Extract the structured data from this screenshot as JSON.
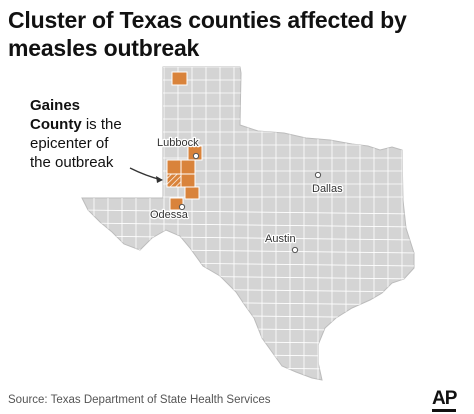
{
  "title": "Cluster of Texas counties affected by measles outbreak",
  "annotation": {
    "bold_text": "Gaines",
    "bold_text_line2": "County",
    "rest_line1": " is the",
    "rest_line2": "epicenter of",
    "rest_line3": "the outbreak"
  },
  "cities": [
    {
      "name": "Lubbock"
    },
    {
      "name": "Dallas"
    },
    {
      "name": "Odessa"
    },
    {
      "name": "Austin"
    }
  ],
  "source": "Source: Texas Department of State Health Services",
  "logo_text": "AP",
  "colors": {
    "affected_county": "#d9833b",
    "state_fill": "#d4d4d4",
    "county_border": "#ffffff",
    "city_dot": "#ffffff"
  }
}
